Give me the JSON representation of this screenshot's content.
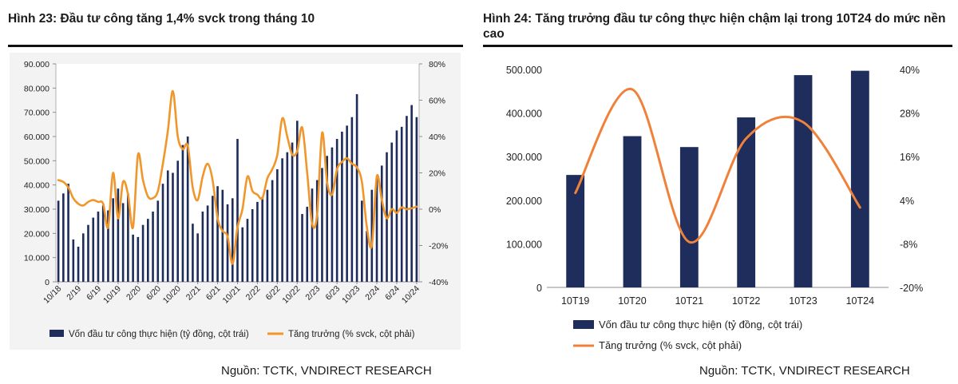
{
  "colors": {
    "bar": "#1f2d5c",
    "line": "#f0962a",
    "axis": "#999999",
    "grid_band": "#f2f2f2"
  },
  "left": {
    "title": "Hình 23: Đầu tư công tăng 1,4% svck trong tháng 10",
    "source": "Nguồn: TCTK, VNDIRECT RESEARCH",
    "legend": {
      "bar": "Vốn đầu tư công thực hiện (tỷ đồng, cột trái)",
      "line": "Tăng trưởng (% svck, cột phải)"
    },
    "y_left_ticks": [
      "0",
      "10.000",
      "20.000",
      "30.000",
      "40.000",
      "50.000",
      "60.000",
      "70.000",
      "80.000",
      "90.000"
    ],
    "y_right_ticks": [
      "-40%",
      "-20%",
      "0%",
      "20%",
      "40%",
      "60%",
      "80%"
    ],
    "x_ticks": [
      "10/18",
      "2/19",
      "6/19",
      "10/19",
      "2/20",
      "6/20",
      "10/20",
      "2/21",
      "6/21",
      "10/21",
      "2/22",
      "6/22",
      "10/22",
      "2/23",
      "6/23",
      "10/23",
      "2/24",
      "6/24",
      "10/24"
    ]
  },
  "right": {
    "title": "Hình 24: Tăng trưởng đầu tư công thực hiện chậm lại trong 10T24 do mức nền cao",
    "source": "Nguồn:  TCTK, VNDIRECT RESEARCH",
    "legend": {
      "bar": "Vốn đầu tư công thực hiện (tỷ đồng, cột trái)",
      "line": "Tăng trưởng (% svck, cột phải)"
    },
    "y_left_ticks": [
      "0",
      "100.000",
      "200.000",
      "300.000",
      "400.000",
      "500.000"
    ],
    "y_right_ticks": [
      "-20%",
      "-8%",
      "4%",
      "16%",
      "28%",
      "40%"
    ]
  },
  "chart_data": [
    {
      "type": "bar",
      "title": "Hình 23: Đầu tư công tăng 1,4% svck trong tháng 10",
      "ylim": [
        0,
        90000
      ],
      "y2lim": [
        -40,
        80
      ],
      "x": [
        "10/18",
        "11/18",
        "12/18",
        "1/19",
        "2/19",
        "3/19",
        "4/19",
        "5/19",
        "6/19",
        "7/19",
        "8/19",
        "9/19",
        "10/19",
        "11/19",
        "12/19",
        "1/20",
        "2/20",
        "3/20",
        "4/20",
        "5/20",
        "6/20",
        "7/20",
        "8/20",
        "9/20",
        "10/20",
        "11/20",
        "12/20",
        "1/21",
        "2/21",
        "3/21",
        "4/21",
        "5/21",
        "6/21",
        "7/21",
        "8/21",
        "9/21",
        "10/21",
        "11/21",
        "12/21",
        "1/22",
        "2/22",
        "3/22",
        "4/22",
        "5/22",
        "6/22",
        "7/22",
        "8/22",
        "9/22",
        "10/22",
        "11/22",
        "12/22",
        "1/23",
        "2/23",
        "3/23",
        "4/23",
        "5/23",
        "6/23",
        "7/23",
        "8/23",
        "9/23",
        "10/23",
        "11/23",
        "12/23",
        "1/24",
        "2/24",
        "3/24",
        "4/24",
        "5/24",
        "6/24",
        "7/24",
        "8/24",
        "9/24",
        "10/24"
      ],
      "series": [
        {
          "name": "Vốn đầu tư công thực hiện (tỷ đồng, cột trái)",
          "axis": "left",
          "values": [
            33500,
            36500,
            40500,
            17500,
            14500,
            20000,
            23500,
            26500,
            29000,
            31500,
            29500,
            34500,
            38500,
            32500,
            36500,
            19500,
            18500,
            23500,
            26000,
            29000,
            33500,
            40500,
            46000,
            45000,
            50000,
            56500,
            60000,
            24000,
            20000,
            29000,
            31500,
            35500,
            39500,
            38000,
            32000,
            34500,
            59000,
            22500,
            26000,
            30000,
            33000,
            35000,
            38000,
            42000,
            46500,
            51000,
            53500,
            57500,
            66500,
            28000,
            31000,
            38500,
            42000,
            47000,
            52000,
            55500,
            59000,
            62000,
            64500,
            68000,
            77500,
            33500,
            21000,
            38000,
            43500,
            48000,
            53500,
            57500,
            62500,
            64000,
            68500,
            73000,
            68000
          ]
        },
        {
          "name": "Tăng trưởng (% svck, cột phải)",
          "axis": "right",
          "values": [
            16,
            15,
            12,
            6,
            3,
            2,
            4,
            5,
            4,
            3,
            -10,
            20,
            -5,
            15,
            8,
            -10,
            30,
            16,
            7,
            6,
            10,
            25,
            43,
            65,
            40,
            33,
            35,
            12,
            5,
            18,
            25,
            16,
            -5,
            -12,
            -15,
            -30,
            -10,
            0,
            18,
            10,
            8,
            6,
            17,
            22,
            30,
            50,
            40,
            30,
            32,
            45,
            20,
            -8,
            -3,
            42,
            15,
            8,
            22,
            26,
            28,
            25,
            23,
            15,
            -10,
            -20,
            18,
            5,
            -5,
            0,
            -2,
            1,
            0,
            0.5,
            1.4
          ]
        }
      ]
    },
    {
      "type": "bar",
      "title": "Hình 24: Tăng trưởng đầu tư công thực hiện chậm lại trong 10T24 do mức nền cao",
      "categories": [
        "10T19",
        "10T20",
        "10T21",
        "10T22",
        "10T23",
        "10T24"
      ],
      "ylim": [
        0,
        500000
      ],
      "y2lim": [
        -20,
        40
      ],
      "series": [
        {
          "name": "Vốn đầu tư công thực hiện (tỷ đồng, cột trái)",
          "axis": "left",
          "values": [
            258000,
            347000,
            322000,
            390000,
            487000,
            497000
          ]
        },
        {
          "name": "Tăng trưởng (% svck, cột phải)",
          "axis": "right",
          "values": [
            6,
            34.5,
            -7.5,
            21,
            25.5,
            2
          ]
        }
      ]
    }
  ]
}
